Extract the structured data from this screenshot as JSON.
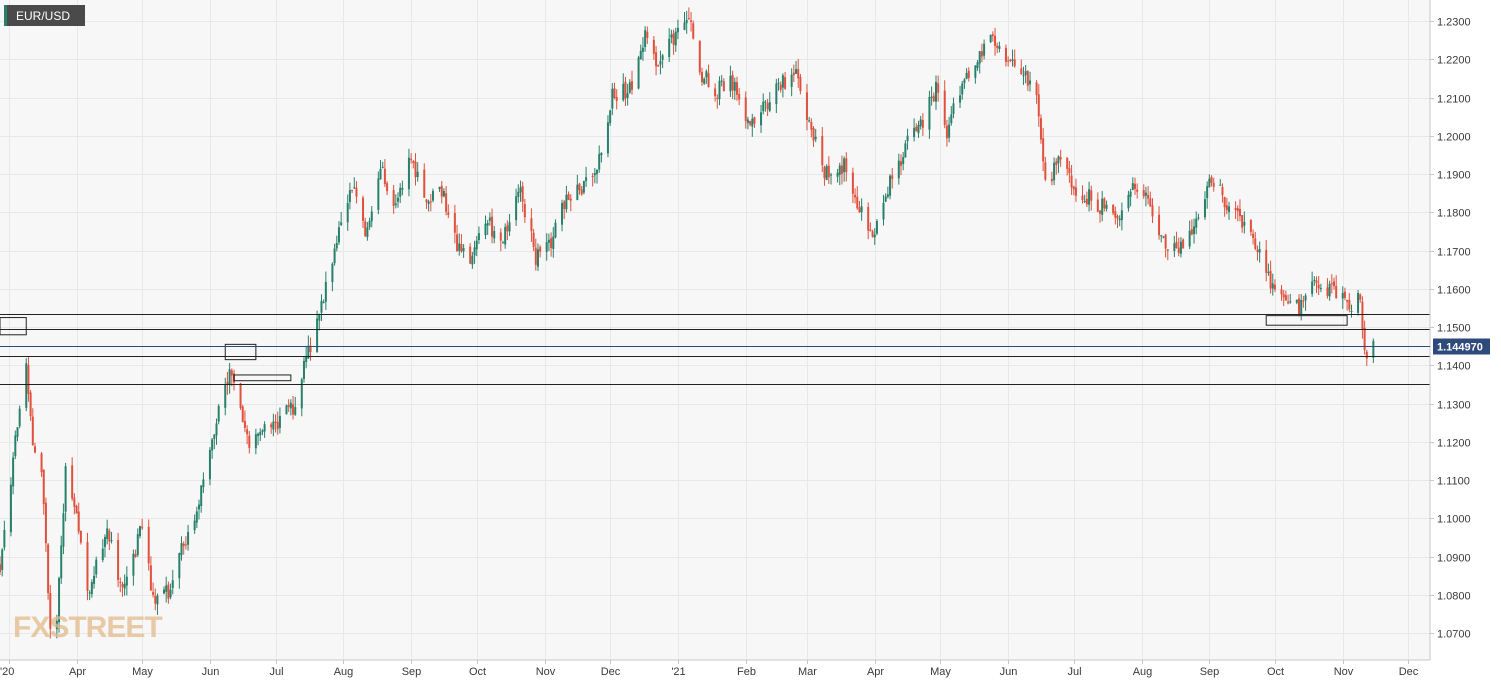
{
  "chart_data": {
    "type": "candlestick",
    "title": "EUR/USD",
    "logo": "FXSTREET",
    "last_price_label": "1.144970",
    "last_price": 1.14497,
    "ylim": [
      1.063,
      1.2355
    ],
    "y_ticks": [
      1.23,
      1.22,
      1.21,
      1.2,
      1.19,
      1.18,
      1.17,
      1.16,
      1.15,
      1.14,
      1.13,
      1.12,
      1.11,
      1.1,
      1.09,
      1.08,
      1.07
    ],
    "y_tick_labels": [
      "1.2300",
      "1.2200",
      "1.2100",
      "1.2000",
      "1.1900",
      "1.1800",
      "1.1700",
      "1.1600",
      "1.1500",
      "1.1400",
      "1.1300",
      "1.1200",
      "1.1100",
      "1.1000",
      "1.0900",
      "1.0800",
      "1.0700"
    ],
    "x_tick_labels": [
      "'20",
      "Apr",
      "May",
      "Jun",
      "Jul",
      "Aug",
      "Sep",
      "Oct",
      "Nov",
      "Dec",
      "'21",
      "Feb",
      "Mar",
      "Apr",
      "May",
      "Jun",
      "Jul",
      "Aug",
      "Sep",
      "Oct",
      "Nov",
      "Dec"
    ],
    "x_tick_dates": [
      "2020-03-01",
      "2020-04-01",
      "2020-05-01",
      "2020-06-01",
      "2020-07-01",
      "2020-08-01",
      "2020-09-01",
      "2020-10-01",
      "2020-11-01",
      "2020-12-01",
      "2021-01-01",
      "2021-02-01",
      "2021-03-01",
      "2021-04-01",
      "2021-05-01",
      "2021-06-01",
      "2021-07-01",
      "2021-08-01",
      "2021-09-01",
      "2021-10-01",
      "2021-11-01",
      "2021-12-01"
    ],
    "horizontal_levels": [
      1.1535,
      1.1495,
      1.1425,
      1.1352
    ],
    "zones": [
      {
        "from": "2020-02-26",
        "to": "2020-03-09",
        "low": 1.148,
        "high": 1.1525
      },
      {
        "from": "2020-06-08",
        "to": "2020-06-22",
        "low": 1.1415,
        "high": 1.1455
      },
      {
        "from": "2020-06-12",
        "to": "2020-07-08",
        "low": 1.136,
        "high": 1.1375
      },
      {
        "from": "2021-09-27",
        "to": "2021-11-03",
        "low": 1.1505,
        "high": 1.153
      }
    ],
    "colors": {
      "up": "#26806a",
      "down": "#e0503c",
      "bg": "#f7f7f7",
      "grid": "#e8e8e8",
      "level": "#222222",
      "price_line": "#2e4a7a",
      "badge": "#2e4a7a"
    },
    "close_path": [
      [
        "2020-02-26",
        1.088
      ],
      [
        "2020-03-09",
        1.142
      ],
      [
        "2020-03-12",
        1.117
      ],
      [
        "2020-03-16",
        1.113
      ],
      [
        "2020-03-20",
        1.07
      ],
      [
        "2020-03-23",
        1.073
      ],
      [
        "2020-03-27",
        1.112
      ],
      [
        "2020-03-31",
        1.103
      ],
      [
        "2020-04-06",
        1.08
      ],
      [
        "2020-04-15",
        1.098
      ],
      [
        "2020-04-20",
        1.085
      ],
      [
        "2020-04-24",
        1.083
      ],
      [
        "2020-05-01",
        1.098
      ],
      [
        "2020-05-06",
        1.079
      ],
      [
        "2020-05-14",
        1.081
      ],
      [
        "2020-05-19",
        1.092
      ],
      [
        "2020-05-26",
        1.101
      ],
      [
        "2020-05-29",
        1.111
      ],
      [
        "2020-06-05",
        1.129
      ],
      [
        "2020-06-10",
        1.138
      ],
      [
        "2020-06-19",
        1.118
      ],
      [
        "2020-06-25",
        1.122
      ],
      [
        "2020-07-01",
        1.125
      ],
      [
        "2020-07-09",
        1.129
      ],
      [
        "2020-07-15",
        1.141
      ],
      [
        "2020-07-21",
        1.153
      ],
      [
        "2020-07-28",
        1.171
      ],
      [
        "2020-08-05",
        1.188
      ],
      [
        "2020-08-11",
        1.174
      ],
      [
        "2020-08-18",
        1.192
      ],
      [
        "2020-08-25",
        1.182
      ],
      [
        "2020-09-01",
        1.196
      ],
      [
        "2020-09-07",
        1.182
      ],
      [
        "2020-09-15",
        1.186
      ],
      [
        "2020-09-22",
        1.171
      ],
      [
        "2020-09-28",
        1.166
      ],
      [
        "2020-10-05",
        1.178
      ],
      [
        "2020-10-12",
        1.173
      ],
      [
        "2020-10-21",
        1.185
      ],
      [
        "2020-10-28",
        1.168
      ],
      [
        "2020-11-04",
        1.172
      ],
      [
        "2020-11-09",
        1.182
      ],
      [
        "2020-11-18",
        1.186
      ],
      [
        "2020-11-25",
        1.192
      ],
      [
        "2020-12-02",
        1.211
      ],
      [
        "2020-12-11",
        1.212
      ],
      [
        "2020-12-17",
        1.226
      ],
      [
        "2020-12-23",
        1.218
      ],
      [
        "2021-01-01",
        1.228
      ],
      [
        "2021-01-06",
        1.232
      ],
      [
        "2021-01-12",
        1.216
      ],
      [
        "2021-01-19",
        1.212
      ],
      [
        "2021-01-26",
        1.214
      ],
      [
        "2021-02-02",
        1.204
      ],
      [
        "2021-02-08",
        1.206
      ],
      [
        "2021-02-16",
        1.213
      ],
      [
        "2021-02-24",
        1.216
      ],
      [
        "2021-03-01",
        1.205
      ],
      [
        "2021-03-09",
        1.19
      ],
      [
        "2021-03-18",
        1.192
      ],
      [
        "2021-03-25",
        1.181
      ],
      [
        "2021-03-31",
        1.173
      ],
      [
        "2021-04-07",
        1.186
      ],
      [
        "2021-04-15",
        1.197
      ],
      [
        "2021-04-22",
        1.203
      ],
      [
        "2021-04-29",
        1.212
      ],
      [
        "2021-05-04",
        1.201
      ],
      [
        "2021-05-11",
        1.214
      ],
      [
        "2021-05-18",
        1.221
      ],
      [
        "2021-05-25",
        1.225
      ],
      [
        "2021-06-01",
        1.221
      ],
      [
        "2021-06-07",
        1.218
      ],
      [
        "2021-06-14",
        1.211
      ],
      [
        "2021-06-18",
        1.187
      ],
      [
        "2021-06-25",
        1.194
      ],
      [
        "2021-07-01",
        1.185
      ],
      [
        "2021-07-08",
        1.184
      ],
      [
        "2021-07-15",
        1.181
      ],
      [
        "2021-07-22",
        1.178
      ],
      [
        "2021-07-29",
        1.188
      ],
      [
        "2021-08-04",
        1.183
      ],
      [
        "2021-08-11",
        1.172
      ],
      [
        "2021-08-18",
        1.171
      ],
      [
        "2021-08-25",
        1.176
      ],
      [
        "2021-09-01",
        1.187
      ],
      [
        "2021-09-03",
        1.188
      ],
      [
        "2021-09-10",
        1.181
      ],
      [
        "2021-09-17",
        1.176
      ],
      [
        "2021-09-24",
        1.17
      ],
      [
        "2021-10-01",
        1.159
      ],
      [
        "2021-10-06",
        1.155
      ],
      [
        "2021-10-12",
        1.155
      ],
      [
        "2021-10-19",
        1.163
      ],
      [
        "2021-10-26",
        1.16
      ],
      [
        "2021-11-01",
        1.157
      ],
      [
        "2021-11-04",
        1.155
      ],
      [
        "2021-11-09",
        1.159
      ],
      [
        "2021-11-10",
        1.148
      ],
      [
        "2021-11-12",
        1.144
      ],
      [
        "2021-11-15",
        1.14497
      ]
    ]
  }
}
